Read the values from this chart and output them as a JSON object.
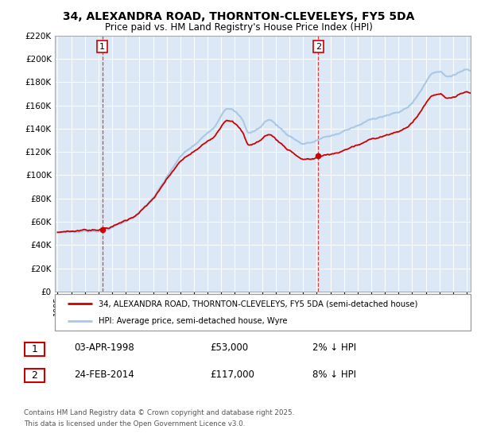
{
  "title": "34, ALEXANDRA ROAD, THORNTON-CLEVELEYS, FY5 5DA",
  "subtitle": "Price paid vs. HM Land Registry's House Price Index (HPI)",
  "legend_line1": "34, ALEXANDRA ROAD, THORNTON-CLEVELEYS, FY5 5DA (semi-detached house)",
  "legend_line2": "HPI: Average price, semi-detached house, Wyre",
  "purchase1_date": "03-APR-1998",
  "purchase1_price": 53000,
  "purchase1_pct": "2% ↓ HPI",
  "purchase2_date": "24-FEB-2014",
  "purchase2_price": 117000,
  "purchase2_pct": "8% ↓ HPI",
  "footnote1": "Contains HM Land Registry data © Crown copyright and database right 2025.",
  "footnote2": "This data is licensed under the Open Government Licence v3.0.",
  "hpi_color": "#a8c8e8",
  "price_color": "#cc0000",
  "vline1_color": "#cc0000",
  "vline2_color": "#cc0000",
  "bg_color": "#dce8f5",
  "ylim": [
    0,
    220000
  ],
  "ytick_vals": [
    0,
    20000,
    40000,
    60000,
    80000,
    100000,
    120000,
    140000,
    160000,
    180000,
    200000,
    220000
  ],
  "ytick_labels": [
    "£0",
    "£20K",
    "£40K",
    "£60K",
    "£80K",
    "£100K",
    "£120K",
    "£140K",
    "£160K",
    "£180K",
    "£200K",
    "£220K"
  ],
  "year_start": 1995,
  "year_end": 2025,
  "purchase1_year": 1998.27,
  "purchase2_year": 2014.12
}
